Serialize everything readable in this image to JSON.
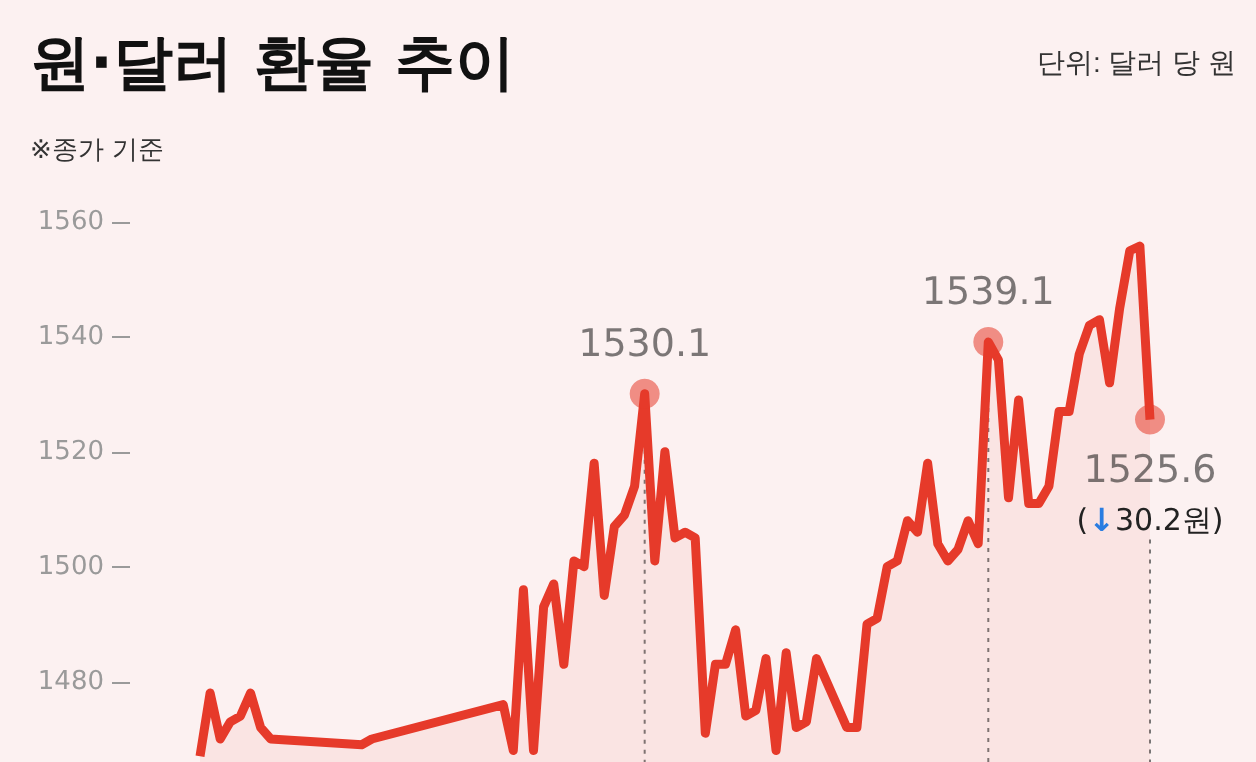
{
  "chart_data": {
    "type": "area",
    "title": "원·달러 환율 추이",
    "subtitle": "※종가 기준",
    "annotations": [
      "단위: 달러 당 원",
      "(↓30.2원)"
    ],
    "categories": [
      null,
      null,
      null,
      null,
      null,
      null,
      null,
      null,
      null,
      null,
      null,
      null,
      null,
      null,
      null,
      null,
      null,
      null,
      null,
      null,
      null,
      null,
      null,
      null,
      null,
      null,
      null,
      null,
      null,
      null,
      null,
      null,
      null,
      null,
      null,
      null,
      null,
      null,
      null,
      null,
      null,
      null,
      null,
      null,
      null,
      null,
      null,
      null,
      null,
      null,
      null,
      null,
      null,
      null,
      null,
      null,
      null,
      null,
      null,
      null,
      null,
      null,
      null,
      null,
      null,
      null,
      null,
      null,
      null,
      null,
      null,
      null,
      null,
      null,
      null,
      null,
      null,
      null,
      null,
      null,
      null,
      null,
      null,
      null,
      null,
      null,
      null,
      null,
      null,
      null,
      null,
      null,
      null,
      null,
      null
    ],
    "series": [
      {
        "color": "#e63a2a",
        "values": [
          1467,
          1478,
          1470,
          1473,
          1474,
          1478,
          1472,
          1470,
          null,
          null,
          null,
          null,
          null,
          null,
          null,
          null,
          1469,
          1470,
          null,
          null,
          null,
          null,
          null,
          null,
          null,
          null,
          null,
          null,
          null,
          null,
          1476,
          1468,
          1496,
          1468,
          1493,
          1497,
          1483,
          1501,
          1500,
          1518,
          1495,
          1507,
          1509,
          1514,
          1530.1,
          1501,
          1520,
          1505,
          1506,
          1505,
          1471,
          1483,
          1483,
          1489,
          1474,
          1475,
          1484,
          1468,
          1485,
          1472,
          1473,
          1484,
          null,
          null,
          1472,
          1472,
          1490,
          1491,
          1500,
          1501,
          1508,
          1506,
          1518,
          1504,
          1501,
          1503,
          1508,
          1504,
          1539.1,
          1536,
          1512,
          1529,
          1511,
          1511,
          1514,
          1527,
          1527,
          1537,
          1542,
          1543,
          1532,
          1545,
          1555,
          1555.8,
          1525.6
        ],
        "value_labels": [
          null,
          null,
          null,
          null,
          null,
          null,
          null,
          null,
          null,
          null,
          null,
          null,
          null,
          null,
          null,
          null,
          null,
          null,
          null,
          null,
          null,
          null,
          null,
          null,
          null,
          null,
          null,
          null,
          null,
          null,
          null,
          null,
          null,
          null,
          null,
          null,
          null,
          null,
          null,
          null,
          null,
          null,
          null,
          null,
          "1530.1",
          null,
          null,
          null,
          null,
          null,
          null,
          null,
          null,
          null,
          null,
          null,
          null,
          null,
          null,
          null,
          null,
          null,
          null,
          null,
          null,
          null,
          null,
          null,
          null,
          null,
          null,
          null,
          null,
          null,
          null,
          null,
          null,
          null,
          "1539.1",
          null,
          null,
          null,
          null,
          null,
          null,
          null,
          null,
          null,
          null,
          null,
          null,
          null,
          null,
          null,
          "1525.6"
        ]
      }
    ],
    "ylim": [
      1466,
      1560
    ],
    "yticks": [
      1480,
      1500,
      1520,
      1540,
      1560
    ],
    "grid": false
  }
}
